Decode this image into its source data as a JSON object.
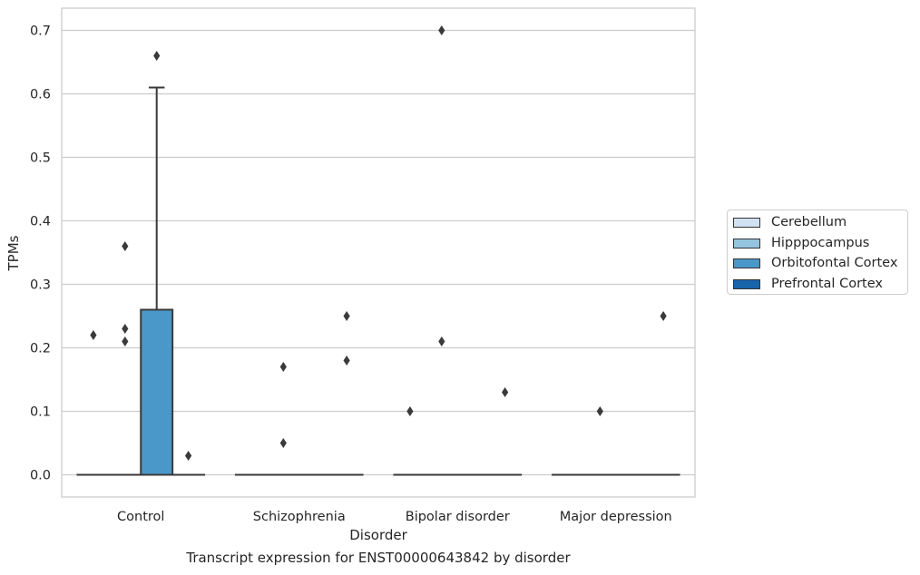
{
  "chart_data": {
    "type": "box",
    "xlabel": "Disorder",
    "ylabel": "TPMs",
    "caption": "Transcript expression for ENST00000643842 by disorder",
    "ylim": [
      -0.035,
      0.735
    ],
    "yticks": [
      "0.0",
      "0.1",
      "0.2",
      "0.3",
      "0.4",
      "0.5",
      "0.6",
      "0.7"
    ],
    "grid": true,
    "legend_placement": "right",
    "categories": [
      "Control",
      "Schizophrenia",
      "Bipolar disorder",
      "Major depression"
    ],
    "series": [
      {
        "name": "Cerebellum",
        "color": "#d0e1f2"
      },
      {
        "name": "Hipppocampus",
        "color": "#94c4df"
      },
      {
        "name": "Orbitofontal Cortex",
        "color": "#4a98c9"
      },
      {
        "name": "Prefrontal Cortex",
        "color": "#1764ab"
      }
    ],
    "boxes": [
      {
        "category": "Control",
        "series": "Cerebellum",
        "q1": 0,
        "median": 0,
        "q3": 0,
        "whisker_low": 0,
        "whisker_high": 0,
        "outliers": [
          0.22
        ]
      },
      {
        "category": "Control",
        "series": "Hipppocampus",
        "q1": 0,
        "median": 0,
        "q3": 0,
        "whisker_low": 0,
        "whisker_high": 0,
        "outliers": [
          0.36,
          0.23,
          0.21
        ]
      },
      {
        "category": "Control",
        "series": "Orbitofontal Cortex",
        "q1": 0,
        "median": 0,
        "q3": 0.26,
        "whisker_low": 0,
        "whisker_high": 0.61,
        "outliers": [
          0.66
        ]
      },
      {
        "category": "Control",
        "series": "Prefrontal Cortex",
        "q1": 0,
        "median": 0,
        "q3": 0,
        "whisker_low": 0,
        "whisker_high": 0,
        "outliers": [
          0.03
        ]
      },
      {
        "category": "Schizophrenia",
        "series": "Cerebellum",
        "q1": 0,
        "median": 0,
        "q3": 0,
        "whisker_low": 0,
        "whisker_high": 0,
        "outliers": []
      },
      {
        "category": "Schizophrenia",
        "series": "Hipppocampus",
        "q1": 0,
        "median": 0,
        "q3": 0,
        "whisker_low": 0,
        "whisker_high": 0,
        "outliers": [
          0.17,
          0.05
        ]
      },
      {
        "category": "Schizophrenia",
        "series": "Orbitofontal Cortex",
        "q1": 0,
        "median": 0,
        "q3": 0,
        "whisker_low": 0,
        "whisker_high": 0,
        "outliers": []
      },
      {
        "category": "Schizophrenia",
        "series": "Prefrontal Cortex",
        "q1": 0,
        "median": 0,
        "q3": 0,
        "whisker_low": 0,
        "whisker_high": 0,
        "outliers": [
          0.25,
          0.18
        ]
      },
      {
        "category": "Bipolar disorder",
        "series": "Cerebellum",
        "q1": 0,
        "median": 0,
        "q3": 0,
        "whisker_low": 0,
        "whisker_high": 0,
        "outliers": [
          0.1
        ]
      },
      {
        "category": "Bipolar disorder",
        "series": "Hipppocampus",
        "q1": 0,
        "median": 0,
        "q3": 0,
        "whisker_low": 0,
        "whisker_high": 0,
        "outliers": [
          0.7,
          0.21
        ]
      },
      {
        "category": "Bipolar disorder",
        "series": "Orbitofontal Cortex",
        "q1": 0,
        "median": 0,
        "q3": 0,
        "whisker_low": 0,
        "whisker_high": 0,
        "outliers": []
      },
      {
        "category": "Bipolar disorder",
        "series": "Prefrontal Cortex",
        "q1": 0,
        "median": 0,
        "q3": 0,
        "whisker_low": 0,
        "whisker_high": 0,
        "outliers": [
          0.13
        ]
      },
      {
        "category": "Major depression",
        "series": "Cerebellum",
        "q1": 0,
        "median": 0,
        "q3": 0,
        "whisker_low": 0,
        "whisker_high": 0,
        "outliers": []
      },
      {
        "category": "Major depression",
        "series": "Hipppocampus",
        "q1": 0,
        "median": 0,
        "q3": 0,
        "whisker_low": 0,
        "whisker_high": 0,
        "outliers": [
          0.1
        ]
      },
      {
        "category": "Major depression",
        "series": "Orbitofontal Cortex",
        "q1": 0,
        "median": 0,
        "q3": 0,
        "whisker_low": 0,
        "whisker_high": 0,
        "outliers": []
      },
      {
        "category": "Major depression",
        "series": "Prefrontal Cortex",
        "q1": 0,
        "median": 0,
        "q3": 0,
        "whisker_low": 0,
        "whisker_high": 0,
        "outliers": [
          0.25
        ]
      }
    ]
  }
}
